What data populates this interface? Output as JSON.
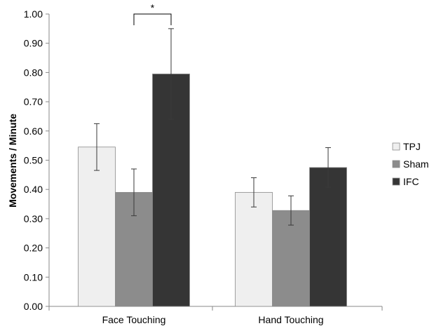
{
  "chart_data": {
    "type": "bar",
    "categories": [
      "Face Touching",
      "Hand Touching"
    ],
    "series": [
      {
        "name": "TPJ",
        "values": [
          0.545,
          0.39
        ],
        "errors": [
          0.08,
          0.05
        ],
        "color": "#efefef"
      },
      {
        "name": "Sham",
        "values": [
          0.39,
          0.328
        ],
        "errors": [
          0.08,
          0.05
        ],
        "color": "#8c8c8c"
      },
      {
        "name": "IFC",
        "values": [
          0.795,
          0.475
        ],
        "errors": [
          0.155,
          0.068
        ],
        "color": "#353535"
      }
    ],
    "ylabel": "Movements / Minute",
    "xlabel": "",
    "ylim": [
      0,
      1.0
    ],
    "yticks": [
      "0.00",
      "0.10",
      "0.20",
      "0.30",
      "0.40",
      "0.50",
      "0.60",
      "0.70",
      "0.80",
      "0.90",
      "1.00"
    ],
    "legend_position": "right",
    "grid": false,
    "annotations": [
      {
        "text": "*",
        "category": "Face Touching",
        "between": [
          "Sham",
          "IFC"
        ]
      }
    ]
  }
}
